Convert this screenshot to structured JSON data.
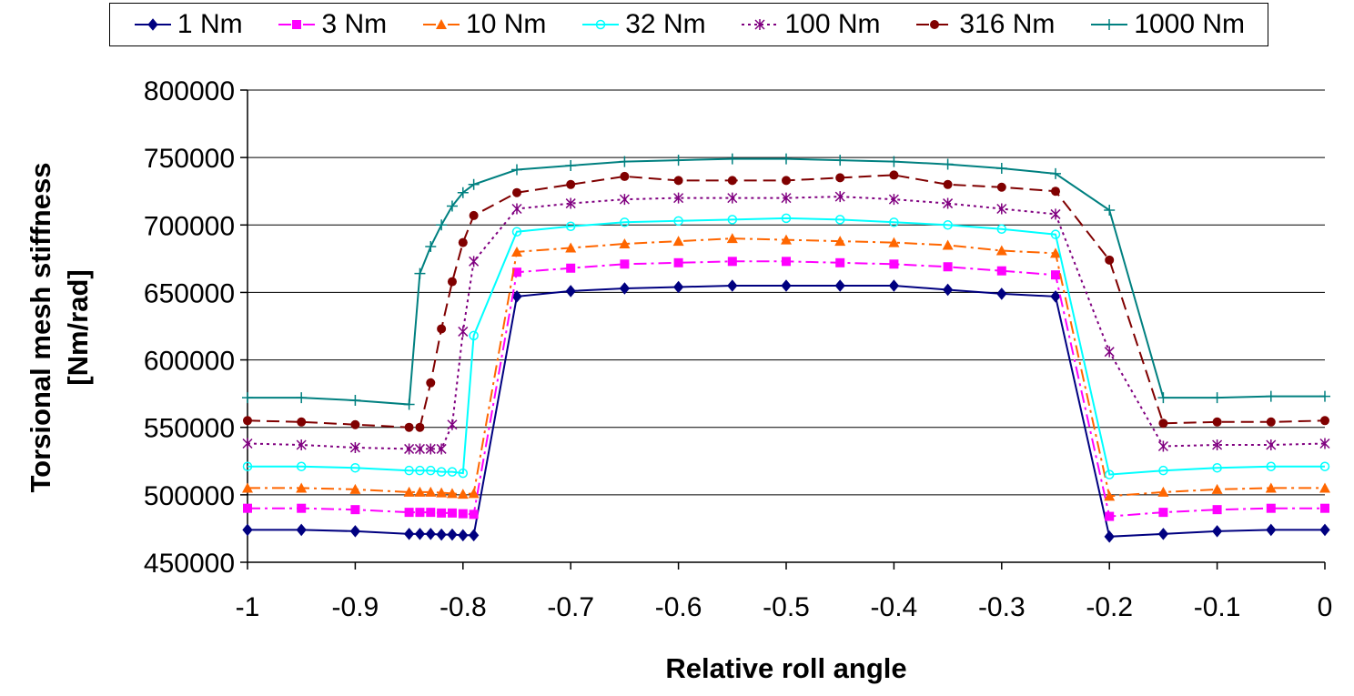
{
  "chart_data": {
    "type": "line",
    "title": "",
    "xlabel": "Relative roll angle",
    "ylabel_lines": [
      "Torsional mesh stiffness",
      "[Nm/rad]"
    ],
    "xlim": [
      -1,
      0
    ],
    "ylim": [
      450000,
      800000
    ],
    "x_ticks": [
      "-1",
      "-0.9",
      "-0.8",
      "-0.7",
      "-0.6",
      "-0.5",
      "-0.4",
      "-0.3",
      "-0.2",
      "-0.1",
      "0"
    ],
    "y_ticks": [
      "800000",
      "750000",
      "700000",
      "650000",
      "600000",
      "550000",
      "500000",
      "450000"
    ],
    "grid": "horizontal",
    "legend_position": "top",
    "series": [
      {
        "name": "1 Nm",
        "color": "#000080",
        "marker": "diamond",
        "dash": "solid",
        "x": [
          -1,
          -0.95,
          -0.9,
          -0.85,
          -0.84,
          -0.83,
          -0.82,
          -0.81,
          -0.8,
          -0.79,
          -0.75,
          -0.7,
          -0.65,
          -0.6,
          -0.55,
          -0.5,
          -0.45,
          -0.4,
          -0.35,
          -0.3,
          -0.25,
          -0.2,
          -0.15,
          -0.1,
          -0.05,
          0
        ],
        "y": [
          474000,
          474000,
          473000,
          471000,
          471000,
          471000,
          470500,
          470500,
          470000,
          470000,
          647000,
          651000,
          653000,
          654000,
          655000,
          655000,
          655000,
          655000,
          652000,
          649000,
          647000,
          469000,
          471000,
          473000,
          474000,
          474000
        ]
      },
      {
        "name": "3 Nm",
        "color": "#ff00ff",
        "marker": "square",
        "dash": "dashdot",
        "x": [
          -1,
          -0.95,
          -0.9,
          -0.85,
          -0.84,
          -0.83,
          -0.82,
          -0.81,
          -0.8,
          -0.79,
          -0.75,
          -0.7,
          -0.65,
          -0.6,
          -0.55,
          -0.5,
          -0.45,
          -0.4,
          -0.35,
          -0.3,
          -0.25,
          -0.2,
          -0.15,
          -0.1,
          -0.05,
          0
        ],
        "y": [
          490000,
          490000,
          489000,
          487000,
          487000,
          487000,
          486500,
          486500,
          486000,
          485500,
          665000,
          668000,
          671000,
          672000,
          673000,
          673000,
          672000,
          671000,
          669000,
          666000,
          663000,
          484000,
          487000,
          489000,
          490000,
          490000
        ]
      },
      {
        "name": "10 Nm",
        "color": "#ff6600",
        "marker": "triangle",
        "dash": "dashdot",
        "x": [
          -1,
          -0.95,
          -0.9,
          -0.85,
          -0.84,
          -0.83,
          -0.82,
          -0.81,
          -0.8,
          -0.79,
          -0.75,
          -0.7,
          -0.65,
          -0.6,
          -0.55,
          -0.5,
          -0.45,
          -0.4,
          -0.35,
          -0.3,
          -0.25,
          -0.2,
          -0.15,
          -0.1,
          -0.05,
          0
        ],
        "y": [
          505000,
          505000,
          504000,
          502000,
          502000,
          502000,
          501500,
          501000,
          500500,
          501000,
          680000,
          683000,
          686000,
          688000,
          690000,
          689000,
          688000,
          687000,
          685000,
          681000,
          679000,
          499000,
          502000,
          504000,
          505000,
          505000
        ]
      },
      {
        "name": "32 Nm",
        "color": "#00ffff",
        "marker": "circle-open",
        "dash": "solid",
        "x": [
          -1,
          -0.95,
          -0.9,
          -0.85,
          -0.84,
          -0.83,
          -0.82,
          -0.81,
          -0.8,
          -0.79,
          -0.75,
          -0.7,
          -0.65,
          -0.6,
          -0.55,
          -0.5,
          -0.45,
          -0.4,
          -0.35,
          -0.3,
          -0.25,
          -0.2,
          -0.15,
          -0.1,
          -0.05,
          0
        ],
        "y": [
          521000,
          521000,
          520000,
          518000,
          518000,
          518000,
          517000,
          517000,
          516000,
          618000,
          695000,
          699000,
          702000,
          703000,
          704000,
          705000,
          704000,
          702000,
          700000,
          697000,
          693000,
          515000,
          518000,
          520000,
          521000,
          521000
        ]
      },
      {
        "name": "100 Nm",
        "color": "#800080",
        "marker": "star",
        "dash": "dotted",
        "x": [
          -1,
          -0.95,
          -0.9,
          -0.85,
          -0.84,
          -0.83,
          -0.82,
          -0.81,
          -0.8,
          -0.79,
          -0.75,
          -0.7,
          -0.65,
          -0.6,
          -0.55,
          -0.5,
          -0.45,
          -0.4,
          -0.35,
          -0.3,
          -0.25,
          -0.2,
          -0.15,
          -0.1,
          -0.05,
          0
        ],
        "y": [
          538000,
          537000,
          535000,
          534000,
          534000,
          534000,
          534000,
          552000,
          621000,
          673000,
          712000,
          716000,
          719000,
          720000,
          720000,
          720000,
          721000,
          719000,
          716000,
          712000,
          708000,
          606000,
          536000,
          537000,
          537000,
          538000
        ]
      },
      {
        "name": "316 Nm",
        "color": "#800000",
        "marker": "circle",
        "dash": "dashed",
        "x": [
          -1,
          -0.95,
          -0.9,
          -0.85,
          -0.84,
          -0.83,
          -0.82,
          -0.81,
          -0.8,
          -0.79,
          -0.75,
          -0.7,
          -0.65,
          -0.6,
          -0.55,
          -0.5,
          -0.45,
          -0.4,
          -0.35,
          -0.3,
          -0.25,
          -0.2,
          -0.15,
          -0.1,
          -0.05,
          0
        ],
        "y": [
          555000,
          554000,
          552000,
          550000,
          550000,
          583000,
          623000,
          658000,
          687000,
          707000,
          724000,
          730000,
          736000,
          733000,
          733000,
          733000,
          735000,
          737000,
          730000,
          728000,
          725000,
          674000,
          553000,
          554000,
          554000,
          555000
        ]
      },
      {
        "name": "1000 Nm",
        "color": "#008080",
        "marker": "plus",
        "dash": "solid",
        "x": [
          -1,
          -0.95,
          -0.9,
          -0.85,
          -0.84,
          -0.83,
          -0.82,
          -0.81,
          -0.8,
          -0.79,
          -0.75,
          -0.7,
          -0.65,
          -0.6,
          -0.55,
          -0.5,
          -0.45,
          -0.4,
          -0.35,
          -0.3,
          -0.25,
          -0.2,
          -0.15,
          -0.1,
          -0.05,
          0
        ],
        "y": [
          572000,
          572000,
          570000,
          567000,
          664000,
          684000,
          700000,
          714000,
          724000,
          730000,
          741000,
          744000,
          747000,
          748000,
          749000,
          749000,
          748000,
          747000,
          745000,
          742000,
          738000,
          711000,
          572000,
          572000,
          573000,
          573000
        ]
      }
    ]
  }
}
